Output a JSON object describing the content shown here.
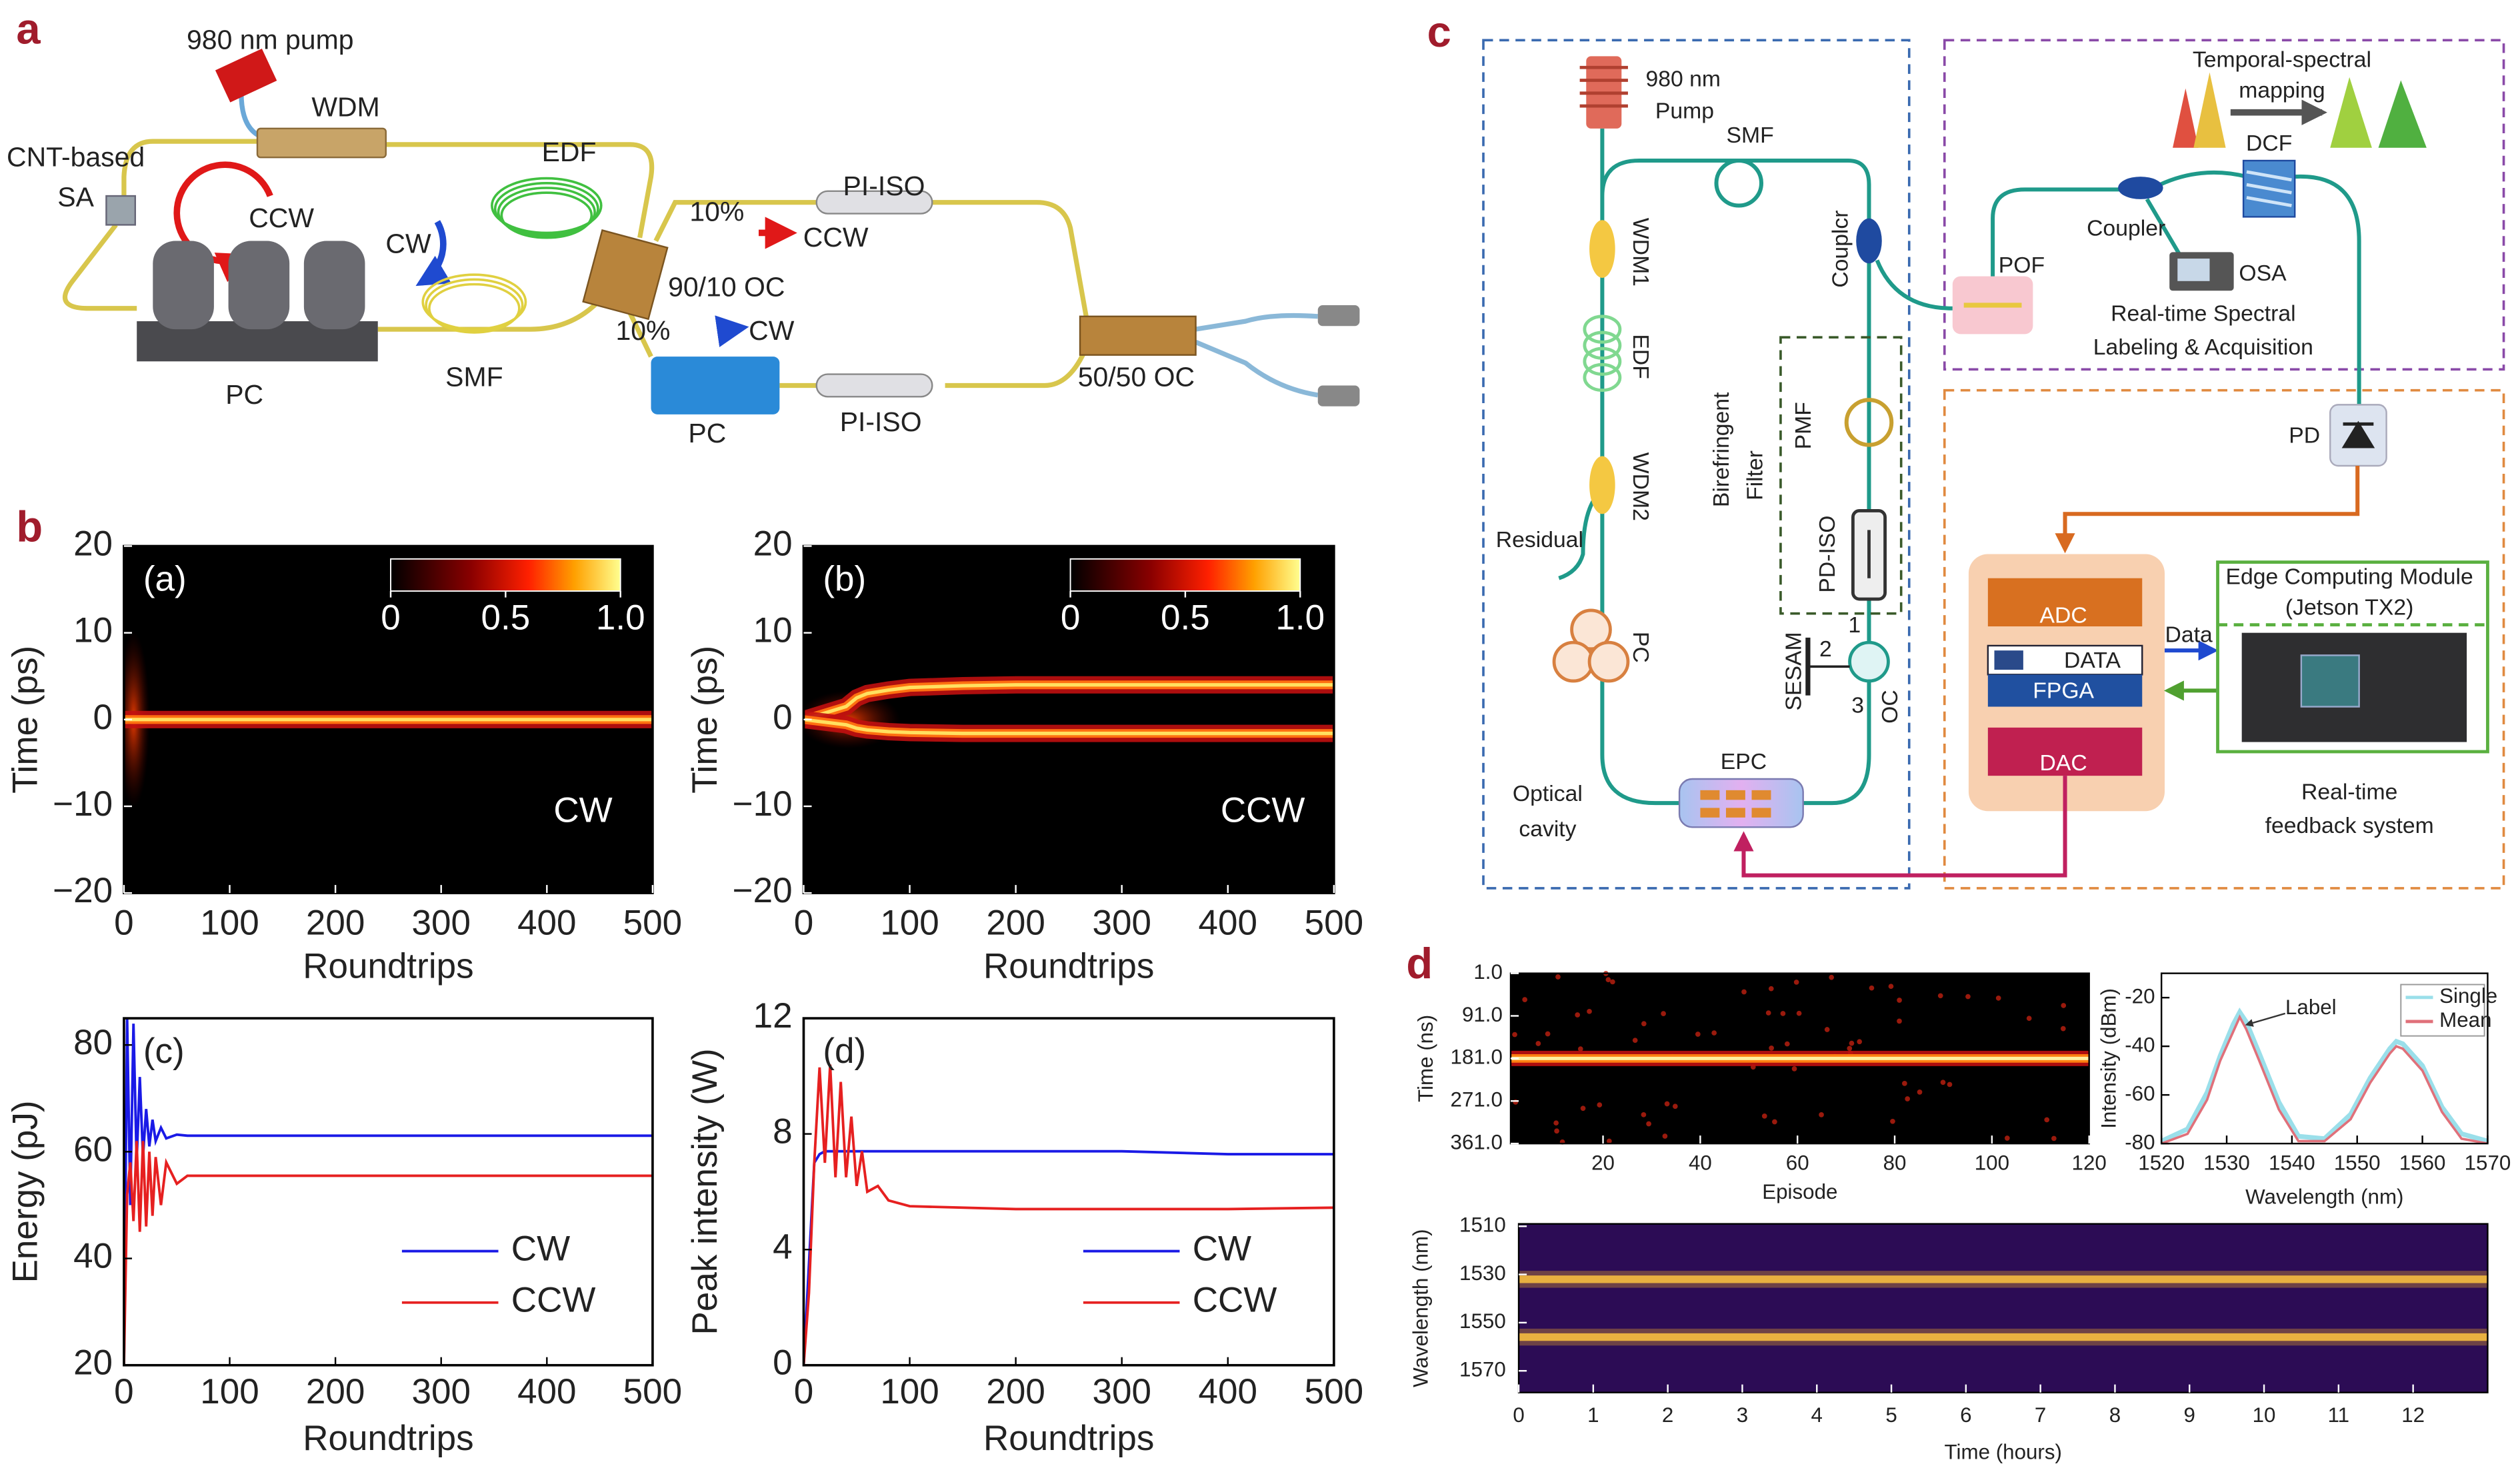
{
  "panel_labels": [
    "a",
    "b",
    "c",
    "d"
  ],
  "diagram_a": {
    "labels": [
      "980 nm pump",
      "WDM",
      "EDF",
      "CNT-based",
      "SA",
      "CCW",
      "CW",
      "PC",
      "SMF",
      "10%",
      "CCW",
      "PI-ISO",
      "90/10 OC",
      "10%",
      "CW",
      "PC",
      "PI-ISO",
      "50/50 OC"
    ]
  },
  "diagram_c": {
    "labels": [
      "980 nm",
      "Pump",
      "SMF",
      "WDM1",
      "EDF",
      "WDM2",
      "Residual",
      "PC",
      "Birefringent",
      "Filter",
      "PMF",
      "PD-ISO",
      "Couplcr",
      "POF",
      "SESAM",
      "1",
      "2",
      "3",
      "OC",
      "EPC",
      "Optical",
      "cavity",
      "Temporal-spectral",
      "mapping",
      "DCF",
      "Coupler",
      "OSA",
      "Real-time Spectral",
      "Labeling & Acquisition",
      "PD",
      "ADC",
      "DATA",
      "FPGA",
      "DAC",
      "Data",
      "Edge Computing Module",
      "(Jetson TX2)",
      "Real-time",
      "feedback system"
    ]
  },
  "chart_data": [
    {
      "type": "heatmap",
      "colormap": "hot",
      "sub_label": "(a)",
      "annotation": "CW",
      "xlabel": "Roundtrips",
      "ylabel": "Time (ps)",
      "xlim": [
        0,
        500
      ],
      "ylim": [
        -20,
        20
      ],
      "xticks": [
        0,
        100,
        200,
        300,
        400,
        500
      ],
      "yticks": [
        {
          "value": -20,
          "label": "−20"
        },
        {
          "value": -10,
          "label": "−10"
        },
        0,
        10,
        20
      ],
      "colorbar": {
        "lim": [
          0,
          1
        ],
        "ticks": [
          0,
          0.5,
          {
            "value": 1,
            "label": "1.0"
          }
        ]
      },
      "traces": [
        {
          "x": [
            0,
            500
          ],
          "values": [
            0,
            0
          ]
        }
      ]
    },
    {
      "type": "heatmap",
      "colormap": "hot",
      "sub_label": "(b)",
      "annotation": "CCW",
      "xlabel": "Roundtrips",
      "ylabel": "Time (ps)",
      "xlim": [
        0,
        500
      ],
      "ylim": [
        -20,
        20
      ],
      "xticks": [
        0,
        100,
        200,
        300,
        400,
        500
      ],
      "yticks": [
        {
          "value": -20,
          "label": "−20"
        },
        {
          "value": -10,
          "label": "−10"
        },
        0,
        10,
        20
      ],
      "colorbar": {
        "lim": [
          0,
          1
        ],
        "ticks": [
          0,
          0.5,
          {
            "value": 1,
            "label": "1.0"
          }
        ]
      },
      "traces": [
        {
          "x": [
            0,
            40,
            50,
            60,
            80,
            100,
            150,
            200,
            300,
            400,
            500
          ],
          "values": [
            0,
            1.5,
            2.5,
            3,
            3.4,
            3.7,
            3.9,
            4,
            4,
            4,
            4
          ]
        },
        {
          "x": [
            0,
            40,
            50,
            60,
            80,
            100,
            150,
            200,
            300,
            400,
            500
          ],
          "values": [
            0,
            -0.6,
            -1,
            -1.2,
            -1.4,
            -1.5,
            -1.6,
            -1.6,
            -1.6,
            -1.6,
            -1.6
          ]
        }
      ]
    },
    {
      "type": "line",
      "sub_label": "(c)",
      "xlabel": "Roundtrips",
      "ylabel": "Energy (pJ)",
      "legend": "lower right",
      "xlim": [
        0,
        500
      ],
      "ylim": [
        20,
        85
      ],
      "xticks": [
        0,
        100,
        200,
        300,
        400,
        500
      ],
      "yticks": [
        20,
        40,
        60,
        80
      ],
      "x": [
        0,
        3,
        6,
        9,
        12,
        15,
        18,
        21,
        24,
        27,
        30,
        35,
        40,
        50,
        60,
        100,
        200,
        300,
        400,
        500
      ],
      "series": [
        {
          "name": "CW",
          "color": "#1a1ae6",
          "values": [
            20,
            85,
            50,
            84,
            58,
            74,
            59,
            68,
            61,
            66,
            62,
            64.5,
            62.5,
            63.2,
            63,
            63,
            63,
            63,
            63,
            63
          ]
        },
        {
          "name": "CCW",
          "color": "#e62020",
          "values": [
            20,
            52,
            58,
            47,
            62,
            45,
            62,
            46,
            60,
            48,
            59,
            50,
            58,
            54,
            55.5,
            55.5,
            55.5,
            55.5,
            55.5,
            55.5
          ]
        }
      ]
    },
    {
      "type": "line",
      "sub_label": "(d)",
      "xlabel": "Roundtrips",
      "ylabel": "Peak intensity (W)",
      "legend": "lower right",
      "xlim": [
        0,
        500
      ],
      "ylim": [
        0,
        12
      ],
      "xticks": [
        0,
        100,
        200,
        300,
        400,
        500
      ],
      "yticks": [
        0,
        4,
        8,
        12
      ],
      "x": [
        0,
        5,
        10,
        15,
        20,
        25,
        30,
        35,
        40,
        45,
        50,
        55,
        60,
        70,
        80,
        100,
        200,
        300,
        400,
        500
      ],
      "series": [
        {
          "name": "CW",
          "color": "#1a1ae6",
          "values": [
            0,
            3.5,
            7,
            7.3,
            7.4,
            7.4,
            7.4,
            7.4,
            7.4,
            7.4,
            7.4,
            7.4,
            7.4,
            7.4,
            7.4,
            7.4,
            7.4,
            7.4,
            7.3,
            7.3
          ]
        },
        {
          "name": "CCW",
          "color": "#e62020",
          "values": [
            0,
            2.5,
            7,
            10.3,
            7,
            10.4,
            6.5,
            9.8,
            6.5,
            8.6,
            6.2,
            7.4,
            6,
            6.2,
            5.7,
            5.5,
            5.4,
            5.4,
            5.4,
            5.45
          ]
        }
      ]
    },
    {
      "type": "heatmap",
      "colormap": "hot",
      "xlabel": "Episode",
      "ylabel": "Time (ns)",
      "y_inverted": true,
      "xlim": [
        1,
        120
      ],
      "ylim": [
        1,
        361
      ],
      "xticks": [
        20,
        40,
        60,
        80,
        100,
        120
      ],
      "yticks": [
        {
          "value": 1,
          "label": "1.0"
        },
        {
          "value": 91,
          "label": "91.0"
        },
        {
          "value": 181,
          "label": "181.0"
        },
        {
          "value": 271,
          "label": "271.0"
        },
        {
          "value": 361,
          "label": "361.0"
        }
      ],
      "traces": [
        {
          "x": [
            1,
            120
          ],
          "values": [
            181,
            181
          ]
        }
      ]
    },
    {
      "type": "line",
      "annotation": "Label",
      "xlabel": "Wavelength (nm)",
      "ylabel": "Intensity (dBm)",
      "legend": "upper right",
      "xlim": [
        1520,
        1570
      ],
      "ylim": [
        -80,
        -10
      ],
      "xticks": [
        1520,
        1530,
        1540,
        1550,
        1560,
        1570
      ],
      "yticks": [
        -20,
        -40,
        -60,
        -80
      ],
      "x": [
        1520,
        1524,
        1527,
        1529,
        1531,
        1532,
        1533,
        1535,
        1538,
        1541,
        1545,
        1549,
        1552,
        1555,
        1556,
        1557,
        1560,
        1563,
        1566,
        1570
      ],
      "series": [
        {
          "name": "Single",
          "color": "#9adfea",
          "values": [
            -79,
            -74,
            -59,
            -44,
            -31,
            -26,
            -30,
            -43,
            -63,
            -77,
            -78,
            -68,
            -53,
            -41,
            -38,
            -39,
            -48,
            -65,
            -76,
            -79
          ]
        },
        {
          "name": "Mean",
          "color": "#e0707a",
          "values": [
            -80,
            -76,
            -62,
            -46,
            -34,
            -28,
            -33,
            -46,
            -66,
            -79,
            -79,
            -70,
            -55,
            -43,
            -40,
            -41,
            -50,
            -67,
            -78,
            -80
          ]
        }
      ]
    },
    {
      "type": "heatmap",
      "colormap": "viridis",
      "xlabel": "Time (hours)",
      "ylabel": "Wavelength (nm)",
      "y_inverted": true,
      "xlim": [
        0,
        13
      ],
      "ylim": [
        1509,
        1579
      ],
      "xticks": [
        0,
        1,
        2,
        3,
        4,
        5,
        6,
        7,
        8,
        9,
        10,
        11,
        12
      ],
      "yticks": [
        1510,
        1530,
        1550,
        1570
      ],
      "traces": [
        {
          "x": [
            0,
            13
          ],
          "values": [
            1532,
            1532
          ]
        },
        {
          "x": [
            0,
            13
          ],
          "values": [
            1556,
            1556
          ]
        }
      ]
    }
  ]
}
